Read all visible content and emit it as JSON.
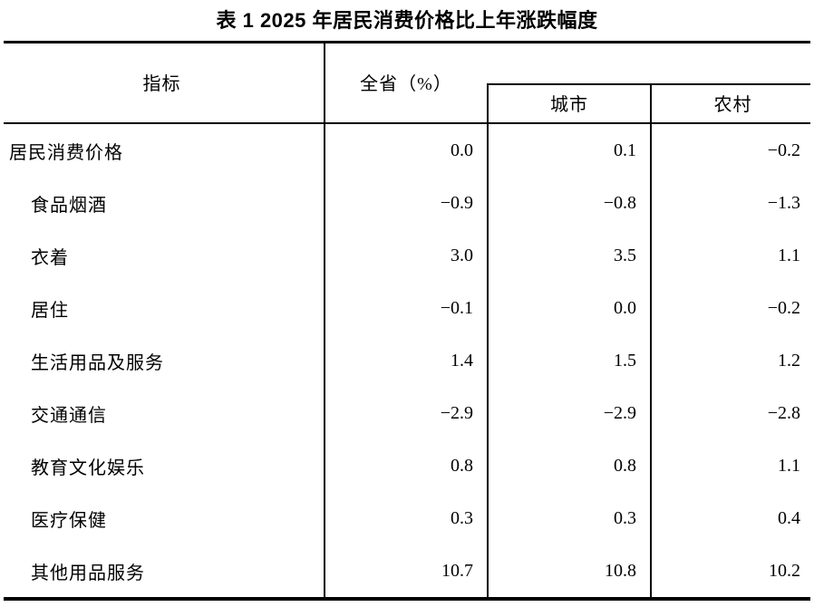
{
  "title": "表 1 2025 年居民消费价格比上年涨跌幅度",
  "table": {
    "header": {
      "indicator": "指标",
      "province": "全省（%）",
      "city": "城市",
      "rural": "农村"
    },
    "rows": [
      {
        "label": "居民消费价格",
        "indent": false,
        "province": "0.0",
        "city": "0.1",
        "rural": "−0.2"
      },
      {
        "label": "食品烟酒",
        "indent": true,
        "province": "−0.9",
        "city": "−0.8",
        "rural": "−1.3"
      },
      {
        "label": "衣着",
        "indent": true,
        "province": "3.0",
        "city": "3.5",
        "rural": "1.1"
      },
      {
        "label": "居住",
        "indent": true,
        "province": "−0.1",
        "city": "0.0",
        "rural": "−0.2"
      },
      {
        "label": "生活用品及服务",
        "indent": true,
        "province": "1.4",
        "city": "1.5",
        "rural": "1.2"
      },
      {
        "label": "交通通信",
        "indent": true,
        "province": "−2.9",
        "city": "−2.9",
        "rural": "−2.8"
      },
      {
        "label": "教育文化娱乐",
        "indent": true,
        "province": "0.8",
        "city": "0.8",
        "rural": "1.1"
      },
      {
        "label": "医疗保健",
        "indent": true,
        "province": "0.3",
        "city": "0.3",
        "rural": "0.4"
      },
      {
        "label": "其他用品服务",
        "indent": true,
        "province": "10.7",
        "city": "10.8",
        "rural": "10.2"
      }
    ]
  },
  "colors": {
    "text": "#000000",
    "border": "#000000",
    "background": "#ffffff"
  }
}
